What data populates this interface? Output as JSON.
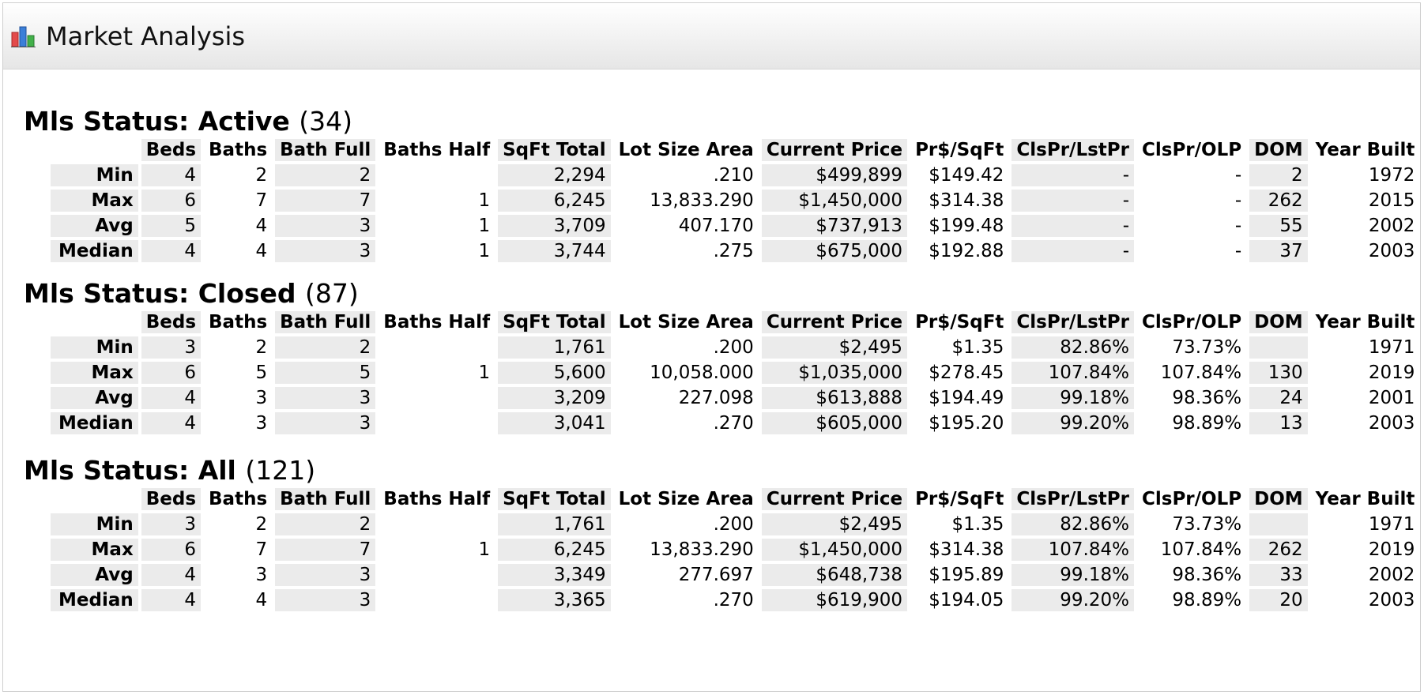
{
  "header": {
    "title": "Market Analysis",
    "icon": "bar-chart-icon",
    "icon_colors": [
      "#e34b4b",
      "#3b7fd8",
      "#42b04a"
    ]
  },
  "columns": [
    "Beds",
    "Baths",
    "Bath Full",
    "Baths Half",
    "SqFt Total",
    "Lot Size Area",
    "Current Price",
    "Pr$/SqFt",
    "ClsPr/LstPr",
    "ClsPr/OLP",
    "DOM",
    "Year Built"
  ],
  "sections": [
    {
      "label": "Mls Status: Active",
      "count": "(34)",
      "rows": [
        {
          "label": "Min",
          "cells": [
            "4",
            "2",
            "2",
            "",
            "2,294",
            ".210",
            "$499,899",
            "$149.42",
            "-",
            "-",
            "2",
            "1972"
          ]
        },
        {
          "label": "Max",
          "cells": [
            "6",
            "7",
            "7",
            "1",
            "6,245",
            "13,833.290",
            "$1,450,000",
            "$314.38",
            "-",
            "-",
            "262",
            "2015"
          ]
        },
        {
          "label": "Avg",
          "cells": [
            "5",
            "4",
            "3",
            "1",
            "3,709",
            "407.170",
            "$737,913",
            "$199.48",
            "-",
            "-",
            "55",
            "2002"
          ]
        },
        {
          "label": "Median",
          "cells": [
            "4",
            "4",
            "3",
            "1",
            "3,744",
            ".275",
            "$675,000",
            "$192.88",
            "-",
            "-",
            "37",
            "2003"
          ]
        }
      ]
    },
    {
      "label": "Mls Status: Closed",
      "count": "(87)",
      "rows": [
        {
          "label": "Min",
          "cells": [
            "3",
            "2",
            "2",
            "",
            "1,761",
            ".200",
            "$2,495",
            "$1.35",
            "82.86%",
            "73.73%",
            "",
            "1971"
          ]
        },
        {
          "label": "Max",
          "cells": [
            "6",
            "5",
            "5",
            "1",
            "5,600",
            "10,058.000",
            "$1,035,000",
            "$278.45",
            "107.84%",
            "107.84%",
            "130",
            "2019"
          ]
        },
        {
          "label": "Avg",
          "cells": [
            "4",
            "3",
            "3",
            "",
            "3,209",
            "227.098",
            "$613,888",
            "$194.49",
            "99.18%",
            "98.36%",
            "24",
            "2001"
          ]
        },
        {
          "label": "Median",
          "cells": [
            "4",
            "3",
            "3",
            "",
            "3,041",
            ".270",
            "$605,000",
            "$195.20",
            "99.20%",
            "98.89%",
            "13",
            "2003"
          ]
        }
      ]
    },
    {
      "label": "Mls Status: All",
      "count": "(121)",
      "rows": [
        {
          "label": "Min",
          "cells": [
            "3",
            "2",
            "2",
            "",
            "1,761",
            ".200",
            "$2,495",
            "$1.35",
            "82.86%",
            "73.73%",
            "",
            "1971"
          ]
        },
        {
          "label": "Max",
          "cells": [
            "6",
            "7",
            "7",
            "1",
            "6,245",
            "13,833.290",
            "$1,450,000",
            "$314.38",
            "107.84%",
            "107.84%",
            "262",
            "2019"
          ]
        },
        {
          "label": "Avg",
          "cells": [
            "4",
            "3",
            "3",
            "",
            "3,349",
            "277.697",
            "$648,738",
            "$195.89",
            "99.18%",
            "98.36%",
            "33",
            "2002"
          ]
        },
        {
          "label": "Median",
          "cells": [
            "4",
            "4",
            "3",
            "",
            "3,365",
            ".270",
            "$619,900",
            "$194.05",
            "99.20%",
            "98.89%",
            "20",
            "2003"
          ]
        }
      ]
    }
  ]
}
